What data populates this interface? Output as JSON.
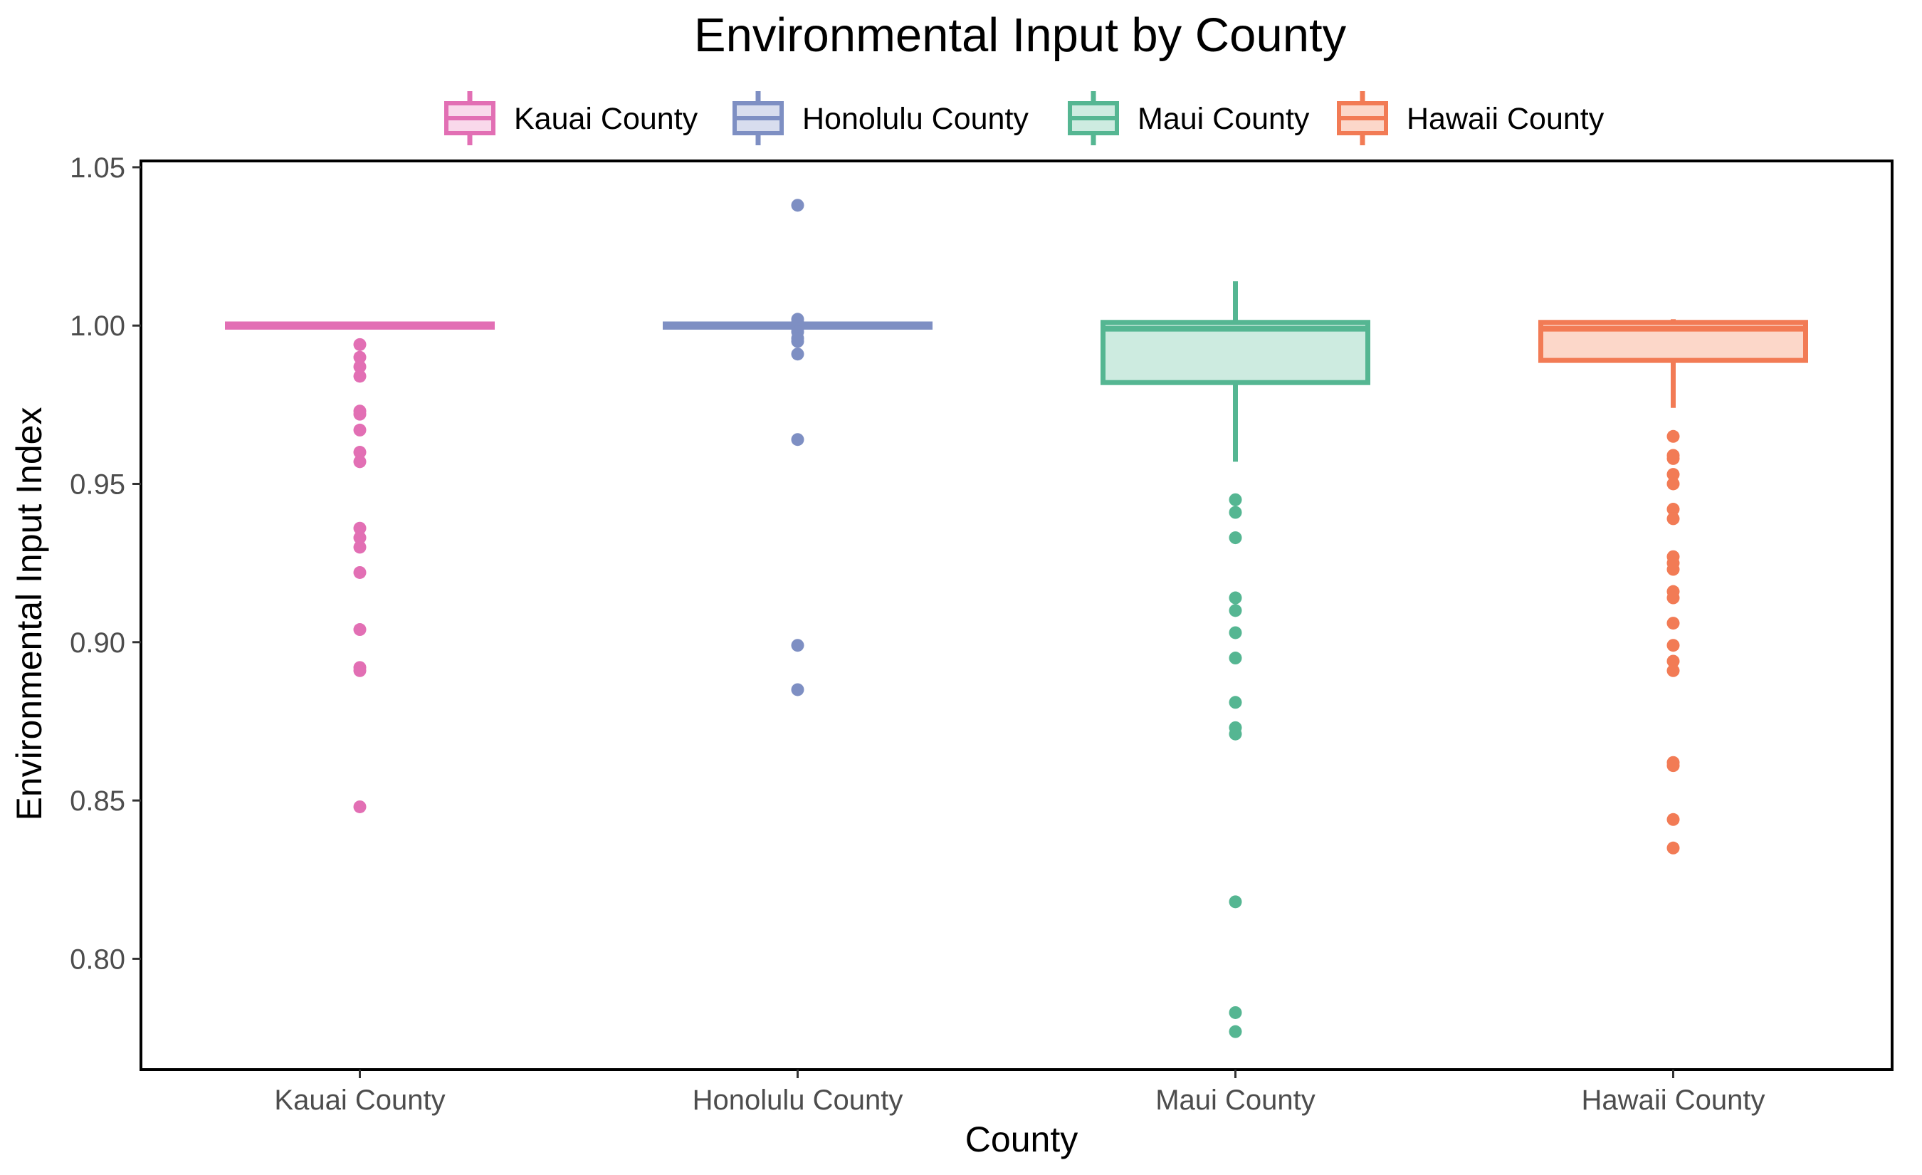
{
  "chart_data": {
    "type": "boxplot",
    "title": "Environmental Input by County",
    "xlabel": "County",
    "ylabel": "Environmental Input Index",
    "ylim": [
      0.765,
      1.052
    ],
    "yticks": [
      0.8,
      0.85,
      0.9,
      0.95,
      1.0,
      1.05
    ],
    "ytick_labels": [
      "0.80",
      "0.85",
      "0.90",
      "0.95",
      "1.00",
      "1.05"
    ],
    "categories": [
      "Kauai County",
      "Honolulu County",
      "Maui County",
      "Hawaii County"
    ],
    "legend": {
      "position": "top",
      "entries": [
        "Kauai County",
        "Honolulu County",
        "Maui County",
        "Hawaii County"
      ]
    },
    "grid": false,
    "series": [
      {
        "name": "Kauai County",
        "color": "#E26FB4",
        "fill": "#F9D9EB",
        "q1": 0.9995,
        "median": 1.0,
        "q3": 1.0005,
        "whisker_low": 0.9995,
        "whisker_high": 1.0005,
        "outliers": [
          0.994,
          0.99,
          0.987,
          0.984,
          0.973,
          0.972,
          0.967,
          0.96,
          0.957,
          0.936,
          0.933,
          0.93,
          0.922,
          0.904,
          0.892,
          0.891,
          0.848
        ]
      },
      {
        "name": "Honolulu County",
        "color": "#7E8FC3",
        "fill": "#D8DDEE",
        "q1": 0.9995,
        "median": 1.0,
        "q3": 1.0005,
        "whisker_low": 0.9995,
        "whisker_high": 1.0005,
        "outliers": [
          1.038,
          1.002,
          1.001,
          0.999,
          0.998,
          0.996,
          0.995,
          0.991,
          0.964,
          0.899,
          0.885
        ]
      },
      {
        "name": "Maui County",
        "color": "#55B692",
        "fill": "#CDEBE0",
        "q1": 0.982,
        "median": 0.999,
        "q3": 1.001,
        "whisker_low": 0.957,
        "whisker_high": 1.014,
        "outliers": [
          0.945,
          0.941,
          0.933,
          0.914,
          0.91,
          0.903,
          0.895,
          0.881,
          0.873,
          0.871,
          0.818,
          0.783,
          0.777
        ]
      },
      {
        "name": "Hawaii County",
        "color": "#F27B55",
        "fill": "#FCD7C9",
        "q1": 0.989,
        "median": 0.999,
        "q3": 1.001,
        "whisker_low": 0.974,
        "whisker_high": 1.002,
        "outliers": [
          0.965,
          0.959,
          0.958,
          0.953,
          0.95,
          0.942,
          0.939,
          0.927,
          0.925,
          0.923,
          0.916,
          0.914,
          0.906,
          0.899,
          0.894,
          0.891,
          0.862,
          0.861,
          0.844,
          0.835
        ]
      }
    ]
  }
}
